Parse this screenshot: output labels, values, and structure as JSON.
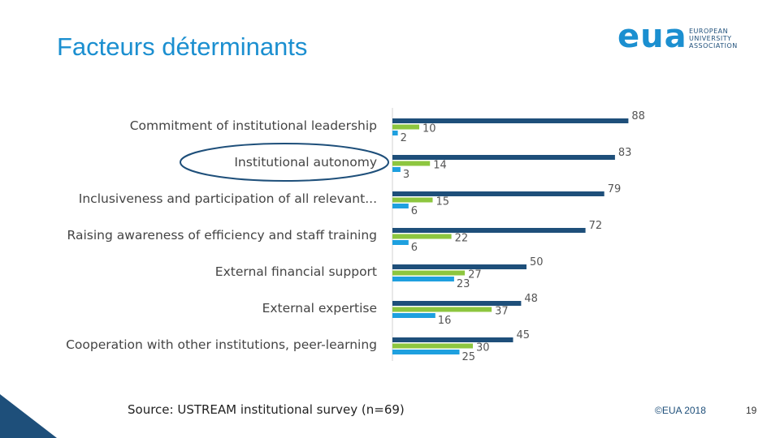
{
  "slide": {
    "title": "Facteurs déterminants",
    "source": "Source: USTREAM institutional survey (n=69)",
    "copyright": "©EUA 2018",
    "page_number": "19"
  },
  "logo": {
    "word": "eua",
    "line1": "EUROPEAN",
    "line2": "UNIVERSITY",
    "line3": "ASSOCIATION"
  },
  "colors": {
    "title": "#1b8fd0",
    "series_dark": "#1e4f7a",
    "series_green": "#8dc63f",
    "series_light": "#1ea0df",
    "highlight_ellipse": "#1e4f7a",
    "corner": "#1e4f7a"
  },
  "chart_data": {
    "type": "bar",
    "orientation": "horizontal",
    "categories": [
      "Commitment of institutional leadership",
      "Institutional autonomy",
      "Inclusiveness and participation of all relevant...",
      "Raising awareness of efficiency and staff training",
      "External financial support",
      "External expertise",
      "Cooperation with other institutions, peer-learning"
    ],
    "series": [
      {
        "values": [
          88,
          83,
          79,
          72,
          50,
          48,
          45
        ],
        "color": "#1e4f7a"
      },
      {
        "values": [
          10,
          14,
          15,
          22,
          27,
          37,
          30
        ],
        "color": "#8dc63f"
      },
      {
        "values": [
          2,
          3,
          6,
          6,
          23,
          16,
          25
        ],
        "color": "#1ea0df"
      }
    ],
    "xlim": [
      0,
      100
    ],
    "highlighted_category": "Institutional autonomy",
    "grid": false
  }
}
